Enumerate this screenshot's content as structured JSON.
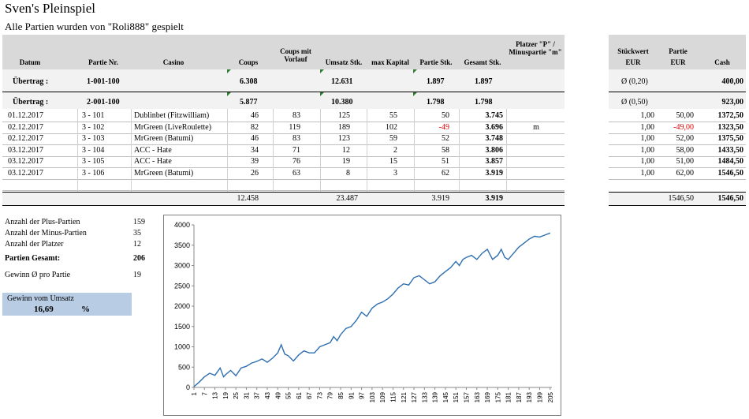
{
  "title": "Sven's Pleinspiel",
  "subtitle": "Alle Partien wurden von \"Roli888\" gespielt",
  "headers": {
    "datum": "Datum",
    "partie_nr": "Partie Nr.",
    "casino": "Casino",
    "coups": "Coups",
    "coups_mit_vorlauf": "Coups mit Vorlauf",
    "umsatz": "Umsatz Stk.",
    "max_kapital": "max Kapital",
    "partie_stk": "Partie Stk.",
    "gesamt_stk": "Gesamt Stk.",
    "platzer": "Platzer \"P\" / Minuspartie \"m\"",
    "stueckwert": "Stückwert",
    "stueckwert_unit": "EUR",
    "partie": "Partie",
    "partie_unit": "EUR",
    "cash": "Cash"
  },
  "carry1": {
    "label": "Übertrag :",
    "nr": "1-001-100",
    "coups": "6.308",
    "umsatz": "12.631",
    "partie": "1.897",
    "gesamt": "1.897",
    "sw": "Ø  (0,20)",
    "cash": "400,00"
  },
  "carry2": {
    "label": "Übertrag :",
    "nr": "2-001-100",
    "coups": "5.877",
    "umsatz": "10.380",
    "partie": "1.798",
    "gesamt": "1.798",
    "sw": "Ø  (0,50)",
    "cash": "923,00"
  },
  "rows": [
    {
      "datum": "01.12.2017",
      "nr": "3 -  101",
      "casino": "Dublinbet (Fitzwilliam)",
      "coups": "46",
      "vorlauf": "83",
      "umsatz": "125",
      "maxk": "55",
      "partie": "50",
      "gesamt": "3.745",
      "flag": "",
      "sw": "1,00",
      "pe": "50,00",
      "cash": "1372,50",
      "neg": false
    },
    {
      "datum": "02.12.2017",
      "nr": "3 -  102",
      "casino": "MrGreen (LiveRoulette)",
      "coups": "82",
      "vorlauf": "119",
      "umsatz": "189",
      "maxk": "102",
      "partie": "-49",
      "gesamt": "3.696",
      "flag": "m",
      "sw": "1,00",
      "pe": "-49,00",
      "cash": "1323,50",
      "neg": true
    },
    {
      "datum": "02.12.2017",
      "nr": "3 -  103",
      "casino": "MrGreen (Batumi)",
      "coups": "46",
      "vorlauf": "83",
      "umsatz": "123",
      "maxk": "59",
      "partie": "52",
      "gesamt": "3.748",
      "flag": "",
      "sw": "1,00",
      "pe": "52,00",
      "cash": "1375,50",
      "neg": false
    },
    {
      "datum": "03.12.2017",
      "nr": "3 -  104",
      "casino": "ACC - Hate",
      "coups": "34",
      "vorlauf": "71",
      "umsatz": "12",
      "maxk": "2",
      "partie": "58",
      "gesamt": "3.806",
      "flag": "",
      "sw": "1,00",
      "pe": "58,00",
      "cash": "1433,50",
      "neg": false
    },
    {
      "datum": "03.12.2017",
      "nr": "3 -  105",
      "casino": "ACC - Hate",
      "coups": "39",
      "vorlauf": "76",
      "umsatz": "19",
      "maxk": "15",
      "partie": "51",
      "gesamt": "3.857",
      "flag": "",
      "sw": "1,00",
      "pe": "51,00",
      "cash": "1484,50",
      "neg": false
    },
    {
      "datum": "03.12.2017",
      "nr": "3 -  106",
      "casino": "MrGreen (Batumi)",
      "coups": "26",
      "vorlauf": "63",
      "umsatz": "8",
      "maxk": "3",
      "partie": "62",
      "gesamt": "3.919",
      "flag": "",
      "sw": "1,00",
      "pe": "62,00",
      "cash": "1546,50",
      "neg": false
    }
  ],
  "totals": {
    "coups": "12.458",
    "umsatz": "23.487",
    "partie": "3.919",
    "gesamt": "3.919",
    "pe": "1546,50",
    "cash": "1546,50"
  },
  "stats": [
    {
      "label": "Anzahl der Plus-Partien",
      "value": "159",
      "bold": false
    },
    {
      "label": "Anzahl der Minus-Partien",
      "value": "35",
      "bold": false
    },
    {
      "label": "Anzahl der Platzer",
      "value": "12",
      "bold": false
    },
    {
      "label": "Partien Gesamt:",
      "value": "206",
      "bold": true
    },
    {
      "label": "Gewinn Ø  pro Partie",
      "value": "19",
      "bold": false
    }
  ],
  "gain": {
    "label": "Gewinn vom Umsatz",
    "value": "16,69",
    "unit": "%"
  },
  "colors": {
    "header_bg": "#d9d9d9",
    "band_bg": "#f2f2f2",
    "line": "#2e6fb0",
    "gain_bg": "#b8cce4",
    "negative": "#e00000"
  },
  "chart_data": {
    "type": "line",
    "ylim": [
      0,
      4000
    ],
    "yticks": [
      0,
      500,
      1000,
      1500,
      2000,
      2500,
      3000,
      3500,
      4000
    ],
    "xticks": [
      1,
      7,
      13,
      19,
      25,
      31,
      37,
      43,
      49,
      55,
      61,
      67,
      73,
      79,
      85,
      91,
      97,
      103,
      109,
      115,
      121,
      127,
      133,
      139,
      145,
      151,
      157,
      163,
      169,
      175,
      181,
      187,
      193,
      199,
      205
    ],
    "xlim": [
      1,
      206
    ],
    "series": [
      {
        "points": [
          [
            1,
            20
          ],
          [
            4,
            130
          ],
          [
            7,
            260
          ],
          [
            10,
            350
          ],
          [
            13,
            300
          ],
          [
            16,
            480
          ],
          [
            18,
            260
          ],
          [
            19,
            310
          ],
          [
            22,
            420
          ],
          [
            25,
            290
          ],
          [
            28,
            480
          ],
          [
            31,
            520
          ],
          [
            34,
            600
          ],
          [
            37,
            640
          ],
          [
            40,
            700
          ],
          [
            43,
            620
          ],
          [
            46,
            720
          ],
          [
            49,
            850
          ],
          [
            51,
            1050
          ],
          [
            53,
            820
          ],
          [
            55,
            780
          ],
          [
            58,
            650
          ],
          [
            61,
            800
          ],
          [
            64,
            900
          ],
          [
            67,
            850
          ],
          [
            70,
            850
          ],
          [
            73,
            1000
          ],
          [
            76,
            1050
          ],
          [
            79,
            1100
          ],
          [
            81,
            1250
          ],
          [
            83,
            1150
          ],
          [
            85,
            1300
          ],
          [
            88,
            1450
          ],
          [
            91,
            1500
          ],
          [
            94,
            1650
          ],
          [
            97,
            1850
          ],
          [
            100,
            1750
          ],
          [
            103,
            1950
          ],
          [
            106,
            2050
          ],
          [
            109,
            2100
          ],
          [
            112,
            2180
          ],
          [
            115,
            2300
          ],
          [
            118,
            2450
          ],
          [
            121,
            2550
          ],
          [
            124,
            2520
          ],
          [
            127,
            2700
          ],
          [
            130,
            2750
          ],
          [
            133,
            2650
          ],
          [
            136,
            2550
          ],
          [
            139,
            2600
          ],
          [
            142,
            2750
          ],
          [
            145,
            2850
          ],
          [
            148,
            2950
          ],
          [
            151,
            3100
          ],
          [
            153,
            3000
          ],
          [
            155,
            3150
          ],
          [
            157,
            3200
          ],
          [
            160,
            3250
          ],
          [
            163,
            3150
          ],
          [
            166,
            3300
          ],
          [
            169,
            3400
          ],
          [
            172,
            3150
          ],
          [
            175,
            3250
          ],
          [
            177,
            3400
          ],
          [
            179,
            3200
          ],
          [
            181,
            3150
          ],
          [
            184,
            3300
          ],
          [
            187,
            3450
          ],
          [
            190,
            3550
          ],
          [
            193,
            3650
          ],
          [
            196,
            3720
          ],
          [
            199,
            3700
          ],
          [
            202,
            3750
          ],
          [
            205,
            3800
          ]
        ]
      }
    ]
  }
}
